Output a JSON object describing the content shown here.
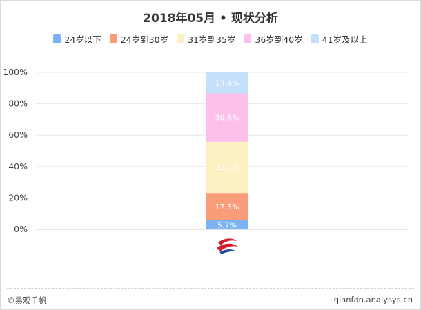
{
  "chart_data": {
    "type": "bar",
    "stacked": true,
    "title": "2018年05月 • 现状分析",
    "categories": [
      "东方航空"
    ],
    "series": [
      {
        "name": "24岁以下",
        "values": [
          5.7
        ],
        "label": "5.7%",
        "color": "#7cb3f2"
      },
      {
        "name": "24岁到30岁",
        "values": [
          17.5
        ],
        "label": "17.5%",
        "color": "#f99c7a"
      },
      {
        "name": "31岁到35岁",
        "values": [
          32.6
        ],
        "label": "32.6%",
        "color": "#fdf0c2"
      },
      {
        "name": "36岁到40岁",
        "values": [
          30.8
        ],
        "label": "30.8%",
        "color": "#fdc0ea"
      },
      {
        "name": "41岁及以上",
        "values": [
          13.4
        ],
        "label": "13.4%",
        "color": "#c5e0fb"
      }
    ],
    "yticks": [
      "0%",
      "20%",
      "40%",
      "60%",
      "80%",
      "100%"
    ],
    "ylim": [
      0,
      100
    ],
    "grid": true,
    "legend_position": "top-center"
  },
  "footer": {
    "left": "©易观千帆",
    "right": "qianfan.analysys.cn"
  },
  "logo_icon": "china-eastern-logo-icon"
}
